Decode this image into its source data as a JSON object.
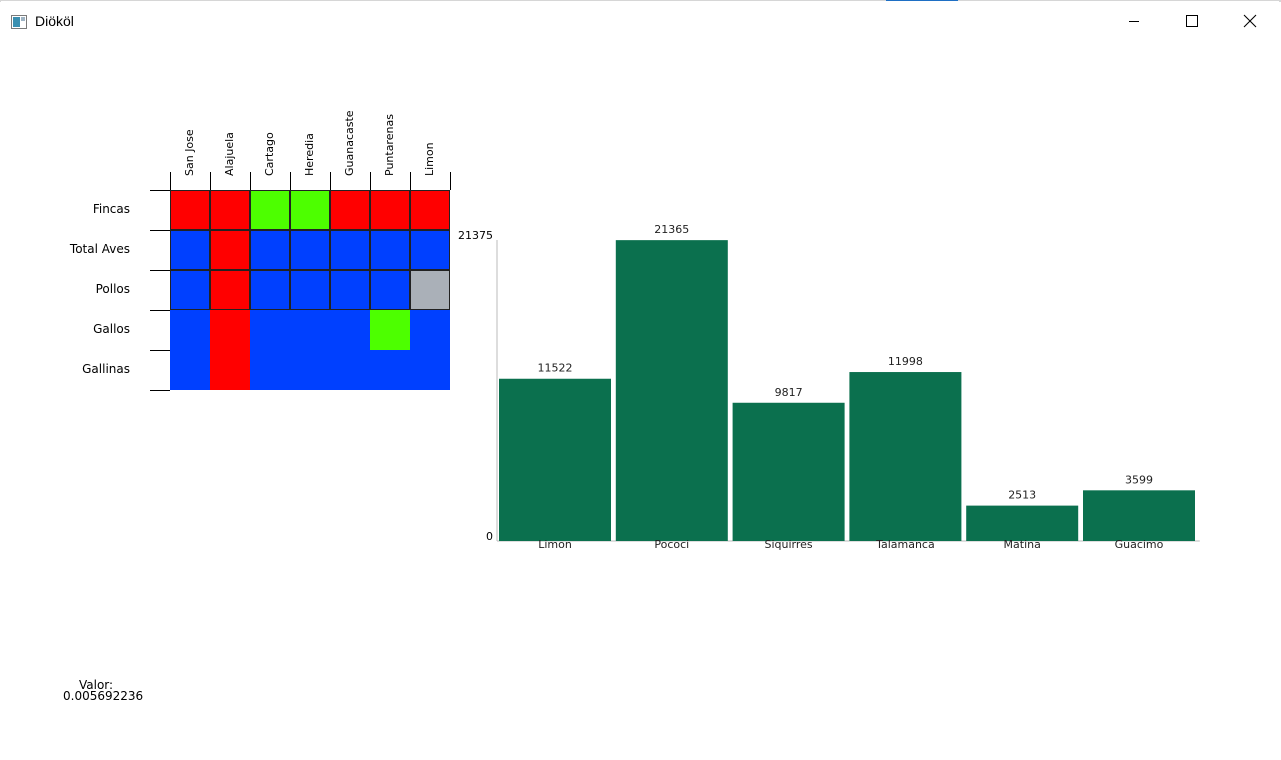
{
  "window": {
    "title": "Diököl",
    "icon": "app-window-icon",
    "controls": [
      "minimize-icon",
      "maximize-icon",
      "close-icon"
    ]
  },
  "heatmap": {
    "columns": [
      "San Jose",
      "Alajuela",
      "Cartago",
      "Heredia",
      "Guanacaste",
      "Puntarenas",
      "Limon"
    ],
    "rows": [
      "Fincas",
      "Total Aves",
      "Pollos",
      "Gallos",
      "Gallinas"
    ],
    "colors": {
      "R": "#ff0000",
      "G": "#4dff00",
      "B": "#0040ff",
      "S": "#aab0b8"
    },
    "cells": [
      [
        "R",
        "R",
        "G",
        "G",
        "R",
        "R",
        "R"
      ],
      [
        "B",
        "R",
        "B",
        "B",
        "B",
        "B",
        "B"
      ],
      [
        "B",
        "R",
        "B",
        "B",
        "B",
        "B",
        "S"
      ],
      [
        "B",
        "R",
        "B",
        "B",
        "B",
        "G",
        "B"
      ],
      [
        "B",
        "R",
        "B",
        "B",
        "B",
        "B",
        "B"
      ]
    ],
    "bordered_rows": 3
  },
  "valor": {
    "label": "Valor:",
    "value": "0.005692236"
  },
  "chart_data": {
    "type": "bar",
    "categories": [
      "Limon",
      "Pococi",
      "Siquirres",
      "Talamanca",
      "Matina",
      "Guacimo"
    ],
    "values": [
      11522,
      21365,
      9817,
      11998,
      2513,
      3599
    ],
    "ylim": [
      0,
      21375
    ],
    "y_tick_labels": [
      "0",
      "21375"
    ],
    "bar_color": "#0b704e",
    "title": "",
    "xlabel": "",
    "ylabel": "",
    "grid": false
  }
}
